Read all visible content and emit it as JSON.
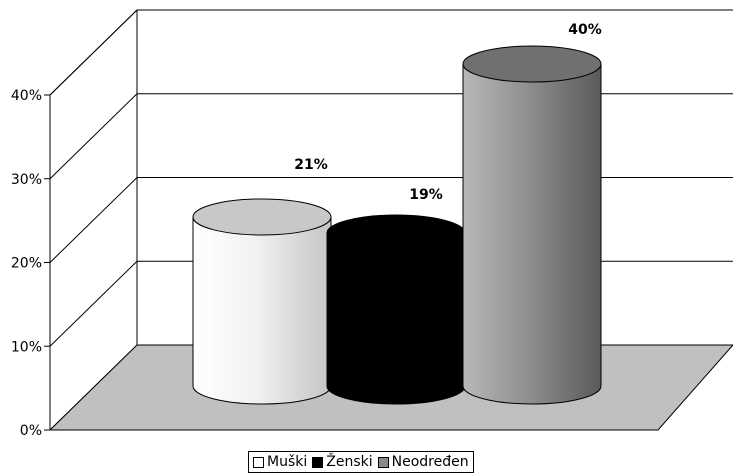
{
  "chart_data": {
    "type": "bar",
    "style": "3d-cylinder",
    "categories": [
      "Muški",
      "Ženski",
      "Neodređen"
    ],
    "values": [
      21,
      19,
      40
    ],
    "value_labels": [
      "21%",
      "19%",
      "40%"
    ],
    "colors": [
      "#f4f4f4",
      "#000000",
      "#8a8a8a"
    ],
    "ylim": [
      0,
      40
    ],
    "yticks": [
      "0%",
      "10%",
      "20%",
      "30%",
      "40%"
    ],
    "grid": true,
    "legend": "bottom"
  }
}
